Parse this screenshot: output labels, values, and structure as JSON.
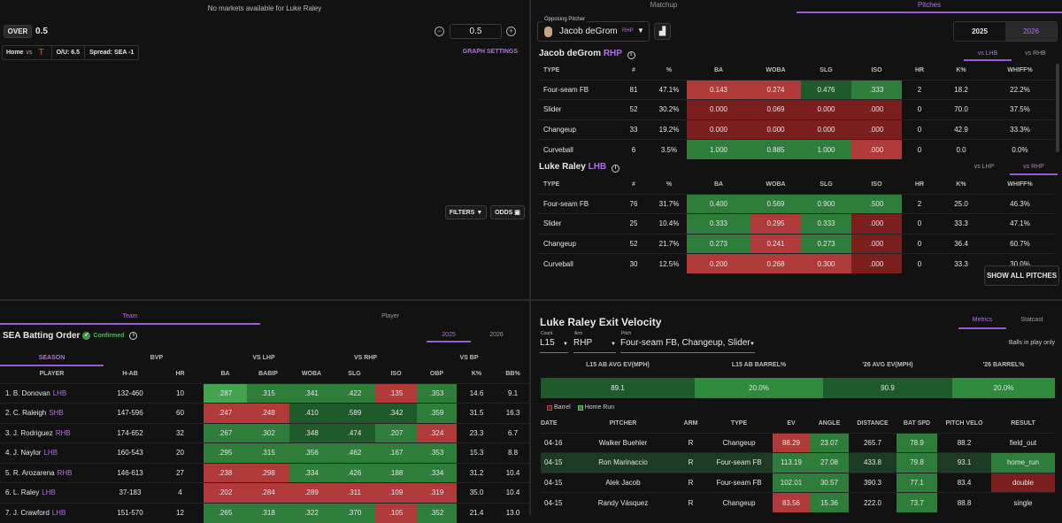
{
  "top_left": {
    "no_markets": "No markets available for Luke Raley",
    "over_label": "OVER",
    "over_value": "0.5",
    "line_value": "0.5",
    "game_home": "Home",
    "game_vs": "vs",
    "ou": "O/U: 6.5",
    "spread": "Spread: SEA -1",
    "graph_settings": "GRAPH SETTINGS",
    "filters": "FILTERS",
    "odds": "ODDS"
  },
  "top_right": {
    "tab_matchup": "Matchup",
    "tab_pitches": "Pitches",
    "opp_label": "Opposing Pitcher",
    "pitcher_name": "Jacob deGrom",
    "pitcher_hand": "RHP",
    "year_2025": "2025",
    "year_2026": "2026",
    "pitcher_section": {
      "name": "Jacob deGrom",
      "hand": "RHP",
      "tab1": "vs LHB",
      "tab2": "vs RHB"
    },
    "batter_section": {
      "name": "Luke Raley",
      "hand": "LHB",
      "tab1": "vs LHP",
      "tab2": "vs RHP"
    },
    "cols": [
      "TYPE",
      "#",
      "%",
      "BA",
      "WOBA",
      "SLG",
      "ISO",
      "HR",
      "K%",
      "WHIFF%"
    ],
    "pitcher_rows": [
      [
        "Four-seam FB",
        "81",
        "47.1%",
        "0.143",
        "0.274",
        "0.476",
        ".333",
        "2",
        "18.2",
        "22.2%"
      ],
      [
        "Slider",
        "52",
        "30.2%",
        "0.000",
        "0.069",
        "0.000",
        ".000",
        "0",
        "70.0",
        "37.5%"
      ],
      [
        "Changeup",
        "33",
        "19.2%",
        "0.000",
        "0.000",
        "0.000",
        ".000",
        "0",
        "42.9",
        "33.3%"
      ],
      [
        "Curveball",
        "6",
        "3.5%",
        "1.000",
        "0.885",
        "1.000",
        ".000",
        "0",
        "0.0",
        "0.0%"
      ]
    ],
    "batter_rows": [
      [
        "Four-seam FB",
        "76",
        "31.7%",
        "0.400",
        "0.569",
        "0.900",
        ".500",
        "2",
        "25.0",
        "46.3%"
      ],
      [
        "Slider",
        "25",
        "10.4%",
        "0.333",
        "0.295",
        "0.333",
        ".000",
        "0",
        "33.3",
        "47.1%"
      ],
      [
        "Changeup",
        "52",
        "21.7%",
        "0.273",
        "0.241",
        "0.273",
        ".000",
        "0",
        "36.4",
        "60.7%"
      ],
      [
        "Curveball",
        "30",
        "12.5%",
        "0.200",
        "0.268",
        "0.300",
        ".000",
        "0",
        "33.3",
        "30.0%"
      ]
    ],
    "show_all": "SHOW ALL PITCHES"
  },
  "bottom_left": {
    "tab_team": "Team",
    "tab_player": "Player",
    "title": "SEA Batting Order",
    "confirmed": "Confirmed",
    "y2025": "2025",
    "y2026": "2026",
    "groups": [
      "SEASON",
      "BVP",
      "VS LHP",
      "VS RHP",
      "VS BP"
    ],
    "cols": [
      "PLAYER",
      "H-AB",
      "HR",
      "BA",
      "BABIP",
      "WOBA",
      "SLG",
      "ISO",
      "OBP",
      "K%",
      "BB%"
    ],
    "rows": [
      {
        "name": "1. B. Donovan",
        "hand": "LHB",
        "v": [
          "132-460",
          "10",
          ".287",
          ".315",
          ".341",
          ".422",
          ".135",
          ".353",
          "14.6",
          "9.1"
        ]
      },
      {
        "name": "2. C. Raleigh",
        "hand": "SHB",
        "v": [
          "147-596",
          "60",
          ".247",
          ".248",
          ".410",
          ".589",
          ".342",
          ".359",
          "31.5",
          "16.3"
        ]
      },
      {
        "name": "3. J. Rodriguez",
        "hand": "RHB",
        "v": [
          "174-652",
          "32",
          ".267",
          ".302",
          ".348",
          ".474",
          ".207",
          ".324",
          "23.3",
          "6.7"
        ]
      },
      {
        "name": "4. J. Naylor",
        "hand": "LHB",
        "v": [
          "160-543",
          "20",
          ".295",
          ".315",
          ".356",
          ".462",
          ".167",
          ".353",
          "15.3",
          "8.8"
        ]
      },
      {
        "name": "5. R. Arozarena",
        "hand": "RHB",
        "v": [
          "146-613",
          "27",
          ".238",
          ".298",
          ".334",
          ".426",
          ".188",
          ".334",
          "31.2",
          "10.4"
        ]
      },
      {
        "name": "6. L. Raley",
        "hand": "LHB",
        "v": [
          "37-183",
          "4",
          ".202",
          ".284",
          ".289",
          ".311",
          ".109",
          ".319",
          "35.0",
          "10.4"
        ]
      },
      {
        "name": "7. J. Crawford",
        "hand": "LHB",
        "v": [
          "151-570",
          "12",
          ".265",
          ".318",
          ".322",
          ".370",
          ".105",
          ".352",
          "21.4",
          "13.0"
        ]
      }
    ]
  },
  "bottom_right": {
    "title": "Luke Raley Exit Velocity",
    "tab_metrics": "Metrics",
    "tab_statcast": "Statcast",
    "count_label": "Count",
    "count_val": "L15",
    "arm_label": "Arm",
    "arm_val": "RHP",
    "pitch_label": "Pitch",
    "pitch_val": "Four-seam FB, Changeup, Slider",
    "bip": "Balls in play only",
    "summary_labels": [
      "L15 AB AVG EV(MPH)",
      "L15 AB BARREL%",
      "'26 AVG EV(MPH)",
      "'26 BARREL%"
    ],
    "summary_vals": [
      "89.1",
      "20.0%",
      "90.9",
      "20.0%"
    ],
    "legend_barrel": "Barrel",
    "legend_hr": "Home Run",
    "cols": [
      "DATE",
      "PITCHER",
      "ARM",
      "TYPE",
      "EV",
      "ANGLE",
      "DISTANCE",
      "BAT SPD",
      "PITCH VELO",
      "RESULT"
    ],
    "rows": [
      [
        "04-16",
        "Walker Buehler",
        "R",
        "Changeup",
        "88.29",
        "23.07",
        "265.7",
        "78.9",
        "88.2",
        "field_out"
      ],
      [
        "04-15",
        "Ron Marinaccio",
        "R",
        "Four-seam FB",
        "113.19",
        "27.08",
        "433.8",
        "79.8",
        "93.1",
        "home_run"
      ],
      [
        "04-15",
        "Alek Jacob",
        "R",
        "Four-seam FB",
        "102.01",
        "30.57",
        "390.3",
        "77.1",
        "83.4",
        "double"
      ],
      [
        "04-15",
        "Randy Vásquez",
        "R",
        "Changeup",
        "83.56",
        "15.36",
        "222.0",
        "73.7",
        "88.8",
        "single"
      ]
    ]
  }
}
